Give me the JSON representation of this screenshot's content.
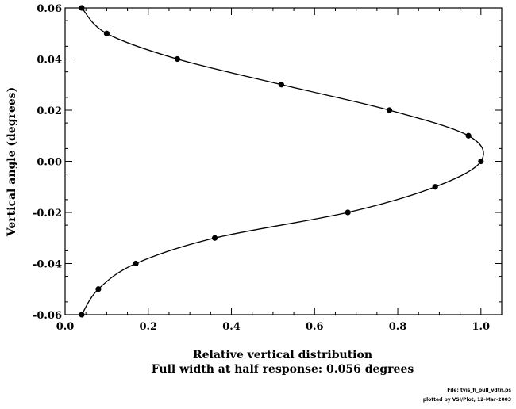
{
  "chart_data": {
    "type": "line",
    "title": "",
    "xlabel": "Relative vertical distribution",
    "subtitle": "Full width at half response:   0.056 degrees",
    "ylabel": "Vertical angle (degrees)",
    "xlim": [
      0.0,
      1.05
    ],
    "ylim": [
      -0.06,
      0.06
    ],
    "x_ticks": [
      0.0,
      0.2,
      0.4,
      0.6,
      0.8,
      1.0
    ],
    "x_tick_labels": [
      "0.0",
      "0.2",
      "0.4",
      "0.6",
      "0.8",
      "1.0"
    ],
    "y_ticks": [
      -0.06,
      -0.04,
      -0.02,
      0.0,
      0.02,
      0.04,
      0.06
    ],
    "y_tick_labels": [
      "-0.06",
      "-0.04",
      "-0.02",
      "0.00",
      "0.02",
      "0.04",
      "0.06"
    ],
    "grid": false,
    "series": [
      {
        "x": [
          0.04,
          0.1,
          0.27,
          0.52,
          0.78,
          0.97,
          1.0,
          0.89,
          0.68,
          0.36,
          0.17,
          0.08,
          0.04
        ],
        "y": [
          0.06,
          0.05,
          0.04,
          0.03,
          0.02,
          0.01,
          0.0,
          -0.01,
          -0.02,
          -0.03,
          -0.04,
          -0.05,
          -0.06
        ],
        "marker": "circle",
        "color": "#000000"
      }
    ]
  },
  "footnotes": {
    "line1": "File: tvis_fi_pull_vdtn.ps",
    "line2": "plotted by VSI/Plot, 12-Mar-2003"
  }
}
